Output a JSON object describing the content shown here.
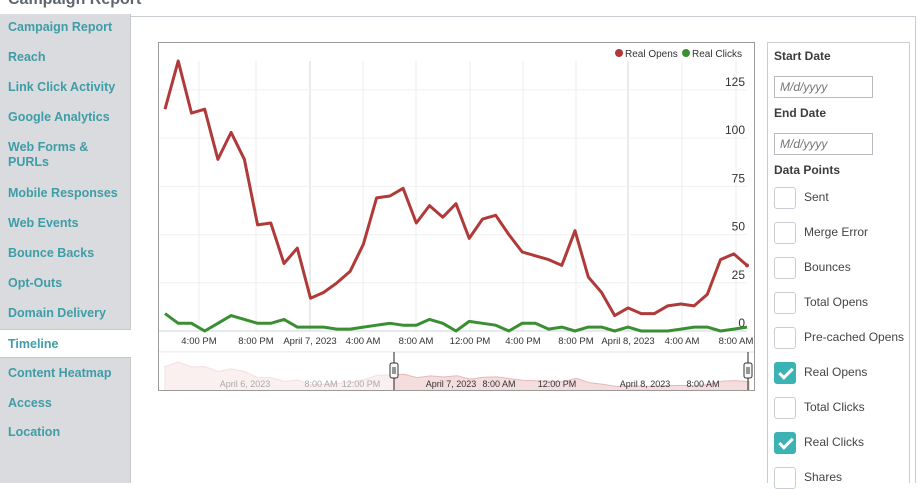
{
  "header": {
    "title": "Campaign Report"
  },
  "sidebar": {
    "items": [
      {
        "label": "Campaign Report",
        "active": false
      },
      {
        "label": "Reach",
        "active": false
      },
      {
        "label": "Link Click Activity",
        "active": false
      },
      {
        "label": "Google Analytics",
        "active": false
      },
      {
        "label": "Web Forms & PURLs",
        "active": false
      },
      {
        "label": "Mobile Responses",
        "active": false
      },
      {
        "label": "Web Events",
        "active": false
      },
      {
        "label": "Bounce Backs",
        "active": false
      },
      {
        "label": "Opt-Outs",
        "active": false
      },
      {
        "label": "Domain Delivery",
        "active": false
      },
      {
        "label": "Timeline",
        "active": true
      },
      {
        "label": "Content Heatmap",
        "active": false
      },
      {
        "label": "Access",
        "active": false
      },
      {
        "label": "Location",
        "active": false
      }
    ]
  },
  "filters": {
    "start_date_label": "Start Date",
    "start_date_placeholder": "M/d/yyyy",
    "end_date_label": "End Date",
    "end_date_placeholder": "M/d/yyyy",
    "data_points_label": "Data Points",
    "data_points": [
      {
        "label": "Sent",
        "checked": false
      },
      {
        "label": "Merge Error",
        "checked": false
      },
      {
        "label": "Bounces",
        "checked": false
      },
      {
        "label": "Total Opens",
        "checked": false
      },
      {
        "label": "Pre-cached Opens",
        "checked": false
      },
      {
        "label": "Real Opens",
        "checked": true
      },
      {
        "label": "Total Clicks",
        "checked": false
      },
      {
        "label": "Real Clicks",
        "checked": true
      },
      {
        "label": "Shares",
        "checked": false
      }
    ]
  },
  "chart_data": {
    "type": "line",
    "x_tick_labels": [
      "4:00 PM",
      "8:00 PM",
      "April 7, 2023",
      "4:00 AM",
      "8:00 AM",
      "12:00 PM",
      "4:00 PM",
      "8:00 PM",
      "April 8, 2023",
      "4:00 AM",
      "8:00 AM"
    ],
    "y_ticks": [
      0,
      25,
      50,
      75,
      100,
      125
    ],
    "ylim": [
      0,
      140
    ],
    "grid": true,
    "legend_position": "top-right",
    "series": [
      {
        "name": "Real Opens",
        "color": "#b03a3a",
        "values": [
          115,
          140,
          113,
          115,
          89,
          103,
          89,
          55,
          56,
          35,
          43,
          17,
          20,
          25,
          31,
          45,
          69,
          70,
          74,
          56,
          65,
          59,
          66,
          48,
          58,
          60,
          50,
          41,
          39,
          37,
          34,
          52,
          28,
          20,
          8,
          12,
          9,
          9,
          13,
          14,
          13,
          19,
          37,
          40,
          34
        ]
      },
      {
        "name": "Real Clicks",
        "color": "#3a8f32",
        "values": [
          9,
          4,
          4,
          0,
          4,
          8,
          6,
          4,
          4,
          6,
          2,
          2,
          2,
          1,
          1,
          2,
          3,
          4,
          3,
          3,
          6,
          4,
          0,
          5,
          4,
          3,
          0,
          4,
          4,
          1,
          2,
          0,
          2,
          2,
          0,
          2,
          0,
          0,
          0,
          1,
          2,
          2,
          0,
          1,
          2
        ]
      }
    ],
    "navigator_labels": [
      "April 6, 2023",
      "8:00 AM",
      "12:00 PM",
      "April 7, 2023",
      "8:00 AM",
      "12:00 PM",
      "April 8, 2023",
      "8:00 AM"
    ]
  }
}
